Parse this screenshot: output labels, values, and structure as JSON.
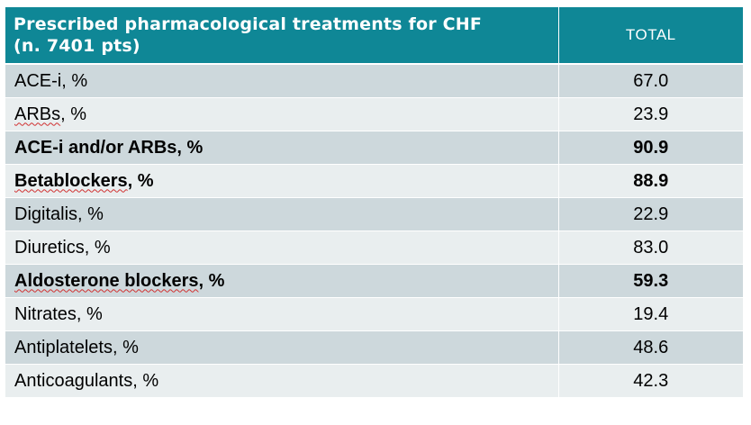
{
  "table": {
    "header": {
      "title_line1": "Prescribed pharmacological treatments for CHF",
      "title_line2": "(n. 7401 pts)",
      "total_label": "TOTAL"
    },
    "rows": [
      {
        "label": "ACE-i, %",
        "value": "67.0"
      },
      {
        "label_word": "ARBs",
        "label_rest": ", %",
        "value": "23.9"
      },
      {
        "label": "ACE-i and/or ARBs, %",
        "value": "90.9"
      },
      {
        "label_word": "Betablockers",
        "label_rest": ", %",
        "value": "88.9"
      },
      {
        "label": "Digitalis, %",
        "value": "22.9"
      },
      {
        "label": "Diuretics, %",
        "value": "83.0"
      },
      {
        "label_word": "Aldosterone blockers",
        "label_rest": ",  %",
        "value": "59.3"
      },
      {
        "label": "Nitrates, %",
        "value": "19.4"
      },
      {
        "label": "Antiplatelets, %",
        "value": "48.6"
      },
      {
        "label": "Anticoagulants, %",
        "value": "42.3"
      }
    ]
  },
  "colors": {
    "header_bg": "#0f8796",
    "row_dark": "#cdd8dc",
    "row_light": "#e9eeef",
    "spellcheck_underline": "#d03030"
  }
}
